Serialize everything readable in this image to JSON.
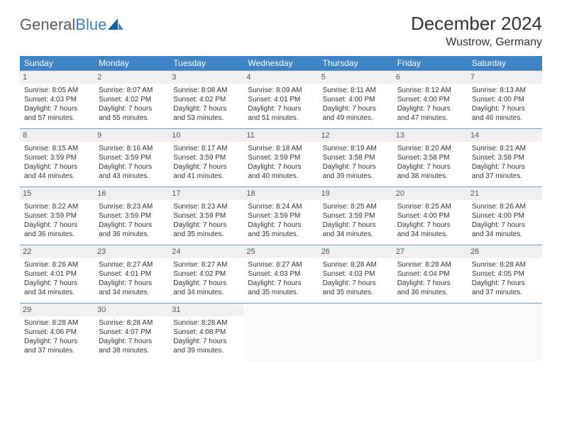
{
  "logo": {
    "text1": "General",
    "text2": "Blue"
  },
  "header": {
    "month_title": "December 2024",
    "location": "Wustrow, Germany"
  },
  "styles": {
    "header_bg": "#3d85c6",
    "header_text": "#ffffff",
    "daynum_bg": "#eef0f2",
    "row_border": "#7a9ab8",
    "page_bg": "#ffffff",
    "text_color": "#333333",
    "logo_gray": "#5a5a5a",
    "logo_blue": "#3f7fbf",
    "month_fontsize": 26,
    "location_fontsize": 16,
    "th_fontsize": 12,
    "cell_fontsize": 10
  },
  "weekdays": [
    "Sunday",
    "Monday",
    "Tuesday",
    "Wednesday",
    "Thursday",
    "Friday",
    "Saturday"
  ],
  "weeks": [
    [
      {
        "day": "1",
        "sunrise": "Sunrise: 8:05 AM",
        "sunset": "Sunset: 4:03 PM",
        "daylight": "Daylight: 7 hours and 57 minutes."
      },
      {
        "day": "2",
        "sunrise": "Sunrise: 8:07 AM",
        "sunset": "Sunset: 4:02 PM",
        "daylight": "Daylight: 7 hours and 55 minutes."
      },
      {
        "day": "3",
        "sunrise": "Sunrise: 8:08 AM",
        "sunset": "Sunset: 4:02 PM",
        "daylight": "Daylight: 7 hours and 53 minutes."
      },
      {
        "day": "4",
        "sunrise": "Sunrise: 8:09 AM",
        "sunset": "Sunset: 4:01 PM",
        "daylight": "Daylight: 7 hours and 51 minutes."
      },
      {
        "day": "5",
        "sunrise": "Sunrise: 8:11 AM",
        "sunset": "Sunset: 4:00 PM",
        "daylight": "Daylight: 7 hours and 49 minutes."
      },
      {
        "day": "6",
        "sunrise": "Sunrise: 8:12 AM",
        "sunset": "Sunset: 4:00 PM",
        "daylight": "Daylight: 7 hours and 47 minutes."
      },
      {
        "day": "7",
        "sunrise": "Sunrise: 8:13 AM",
        "sunset": "Sunset: 4:00 PM",
        "daylight": "Daylight: 7 hours and 46 minutes."
      }
    ],
    [
      {
        "day": "8",
        "sunrise": "Sunrise: 8:15 AM",
        "sunset": "Sunset: 3:59 PM",
        "daylight": "Daylight: 7 hours and 44 minutes."
      },
      {
        "day": "9",
        "sunrise": "Sunrise: 8:16 AM",
        "sunset": "Sunset: 3:59 PM",
        "daylight": "Daylight: 7 hours and 43 minutes."
      },
      {
        "day": "10",
        "sunrise": "Sunrise: 8:17 AM",
        "sunset": "Sunset: 3:59 PM",
        "daylight": "Daylight: 7 hours and 41 minutes."
      },
      {
        "day": "11",
        "sunrise": "Sunrise: 8:18 AM",
        "sunset": "Sunset: 3:59 PM",
        "daylight": "Daylight: 7 hours and 40 minutes."
      },
      {
        "day": "12",
        "sunrise": "Sunrise: 8:19 AM",
        "sunset": "Sunset: 3:58 PM",
        "daylight": "Daylight: 7 hours and 39 minutes."
      },
      {
        "day": "13",
        "sunrise": "Sunrise: 8:20 AM",
        "sunset": "Sunset: 3:58 PM",
        "daylight": "Daylight: 7 hours and 38 minutes."
      },
      {
        "day": "14",
        "sunrise": "Sunrise: 8:21 AM",
        "sunset": "Sunset: 3:58 PM",
        "daylight": "Daylight: 7 hours and 37 minutes."
      }
    ],
    [
      {
        "day": "15",
        "sunrise": "Sunrise: 8:22 AM",
        "sunset": "Sunset: 3:59 PM",
        "daylight": "Daylight: 7 hours and 36 minutes."
      },
      {
        "day": "16",
        "sunrise": "Sunrise: 8:23 AM",
        "sunset": "Sunset: 3:59 PM",
        "daylight": "Daylight: 7 hours and 36 minutes."
      },
      {
        "day": "17",
        "sunrise": "Sunrise: 8:23 AM",
        "sunset": "Sunset: 3:59 PM",
        "daylight": "Daylight: 7 hours and 35 minutes."
      },
      {
        "day": "18",
        "sunrise": "Sunrise: 8:24 AM",
        "sunset": "Sunset: 3:59 PM",
        "daylight": "Daylight: 7 hours and 35 minutes."
      },
      {
        "day": "19",
        "sunrise": "Sunrise: 8:25 AM",
        "sunset": "Sunset: 3:59 PM",
        "daylight": "Daylight: 7 hours and 34 minutes."
      },
      {
        "day": "20",
        "sunrise": "Sunrise: 8:25 AM",
        "sunset": "Sunset: 4:00 PM",
        "daylight": "Daylight: 7 hours and 34 minutes."
      },
      {
        "day": "21",
        "sunrise": "Sunrise: 8:26 AM",
        "sunset": "Sunset: 4:00 PM",
        "daylight": "Daylight: 7 hours and 34 minutes."
      }
    ],
    [
      {
        "day": "22",
        "sunrise": "Sunrise: 8:26 AM",
        "sunset": "Sunset: 4:01 PM",
        "daylight": "Daylight: 7 hours and 34 minutes."
      },
      {
        "day": "23",
        "sunrise": "Sunrise: 8:27 AM",
        "sunset": "Sunset: 4:01 PM",
        "daylight": "Daylight: 7 hours and 34 minutes."
      },
      {
        "day": "24",
        "sunrise": "Sunrise: 8:27 AM",
        "sunset": "Sunset: 4:02 PM",
        "daylight": "Daylight: 7 hours and 34 minutes."
      },
      {
        "day": "25",
        "sunrise": "Sunrise: 8:27 AM",
        "sunset": "Sunset: 4:03 PM",
        "daylight": "Daylight: 7 hours and 35 minutes."
      },
      {
        "day": "26",
        "sunrise": "Sunrise: 8:28 AM",
        "sunset": "Sunset: 4:03 PM",
        "daylight": "Daylight: 7 hours and 35 minutes."
      },
      {
        "day": "27",
        "sunrise": "Sunrise: 8:28 AM",
        "sunset": "Sunset: 4:04 PM",
        "daylight": "Daylight: 7 hours and 36 minutes."
      },
      {
        "day": "28",
        "sunrise": "Sunrise: 8:28 AM",
        "sunset": "Sunset: 4:05 PM",
        "daylight": "Daylight: 7 hours and 37 minutes."
      }
    ],
    [
      {
        "day": "29",
        "sunrise": "Sunrise: 8:28 AM",
        "sunset": "Sunset: 4:06 PM",
        "daylight": "Daylight: 7 hours and 37 minutes."
      },
      {
        "day": "30",
        "sunrise": "Sunrise: 8:28 AM",
        "sunset": "Sunset: 4:07 PM",
        "daylight": "Daylight: 7 hours and 38 minutes."
      },
      {
        "day": "31",
        "sunrise": "Sunrise: 8:28 AM",
        "sunset": "Sunset: 4:08 PM",
        "daylight": "Daylight: 7 hours and 39 minutes."
      },
      {
        "day": "",
        "sunrise": "",
        "sunset": "",
        "daylight": ""
      },
      {
        "day": "",
        "sunrise": "",
        "sunset": "",
        "daylight": ""
      },
      {
        "day": "",
        "sunrise": "",
        "sunset": "",
        "daylight": ""
      },
      {
        "day": "",
        "sunrise": "",
        "sunset": "",
        "daylight": ""
      }
    ]
  ]
}
